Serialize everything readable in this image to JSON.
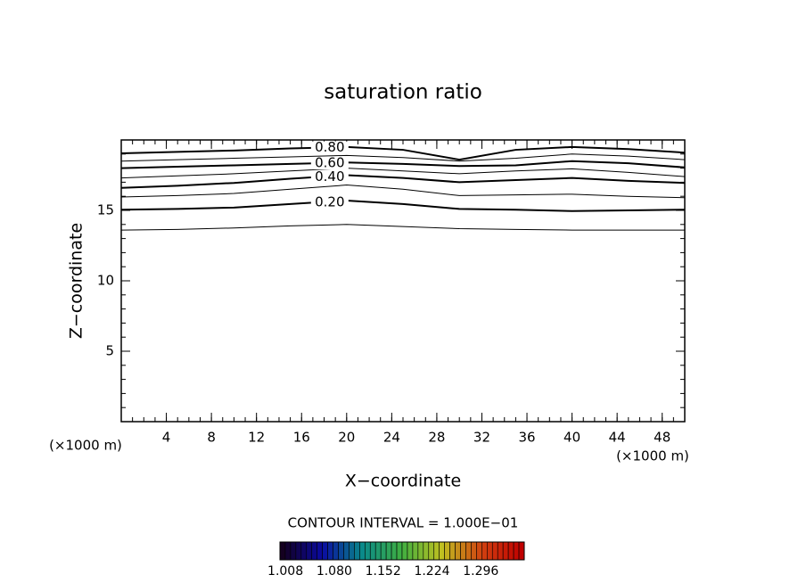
{
  "chart_data": {
    "type": "contour",
    "title": "saturation ratio",
    "xlabel": "X−coordinate",
    "ylabel": "Z−coordinate",
    "xunit": "(×1000 m)",
    "yunit": "(×1000 m)",
    "xlim": [
      0,
      50
    ],
    "ylim": [
      0,
      20
    ],
    "xticks": [
      4,
      8,
      12,
      16,
      20,
      24,
      28,
      32,
      36,
      40,
      44,
      48
    ],
    "yticks": [
      5,
      10,
      15
    ],
    "minor_tick_step": 1,
    "line_color": "#000000",
    "x": [
      0,
      5,
      10,
      15,
      20,
      25,
      30,
      35,
      40,
      45,
      50
    ],
    "contours": [
      {
        "level": 0.1,
        "y": [
          13.6,
          13.65,
          13.75,
          13.9,
          14.0,
          13.85,
          13.7,
          13.65,
          13.6,
          13.6,
          13.6
        ]
      },
      {
        "level": 0.2,
        "label": "0.20",
        "y": [
          15.05,
          15.1,
          15.2,
          15.45,
          15.7,
          15.45,
          15.1,
          15.05,
          14.95,
          15.0,
          15.05
        ]
      },
      {
        "level": 0.3,
        "y": [
          15.95,
          16.05,
          16.2,
          16.5,
          16.8,
          16.5,
          16.05,
          16.1,
          16.15,
          16.0,
          15.9
        ]
      },
      {
        "level": 0.4,
        "label": "0.40",
        "y": [
          16.6,
          16.75,
          16.95,
          17.25,
          17.5,
          17.3,
          17.0,
          17.15,
          17.3,
          17.1,
          16.95
        ]
      },
      {
        "level": 0.5,
        "y": [
          17.3,
          17.45,
          17.6,
          17.8,
          18.0,
          17.8,
          17.6,
          17.8,
          17.95,
          17.7,
          17.4
        ]
      },
      {
        "level": 0.6,
        "label": "0.60",
        "y": [
          18.0,
          18.1,
          18.2,
          18.3,
          18.4,
          18.3,
          18.15,
          18.2,
          18.5,
          18.35,
          18.05
        ]
      },
      {
        "level": 0.7,
        "y": [
          18.5,
          18.6,
          18.7,
          18.8,
          18.9,
          18.75,
          18.5,
          18.7,
          19.0,
          18.85,
          18.6
        ]
      },
      {
        "level": 0.8,
        "label": "0.80",
        "y": [
          19.05,
          19.15,
          19.25,
          19.4,
          19.5,
          19.3,
          18.6,
          19.3,
          19.5,
          19.35,
          19.1
        ]
      }
    ],
    "contour_interval_text": "CONTOUR INTERVAL = 1.000E−01",
    "colorbar": {
      "clim": [
        1.0,
        1.36
      ],
      "colors": [
        "#140020",
        "#0a0aa0",
        "#0a8a8a",
        "#40b040",
        "#c0c020",
        "#d04010",
        "#c00000"
      ],
      "ticks": [
        {
          "value": 1.008,
          "label": "1.008"
        },
        {
          "value": 1.08,
          "label": "1.080"
        },
        {
          "value": 1.152,
          "label": "1.152"
        },
        {
          "value": 1.224,
          "label": "1.224"
        },
        {
          "value": 1.296,
          "label": "1.296"
        }
      ]
    }
  }
}
